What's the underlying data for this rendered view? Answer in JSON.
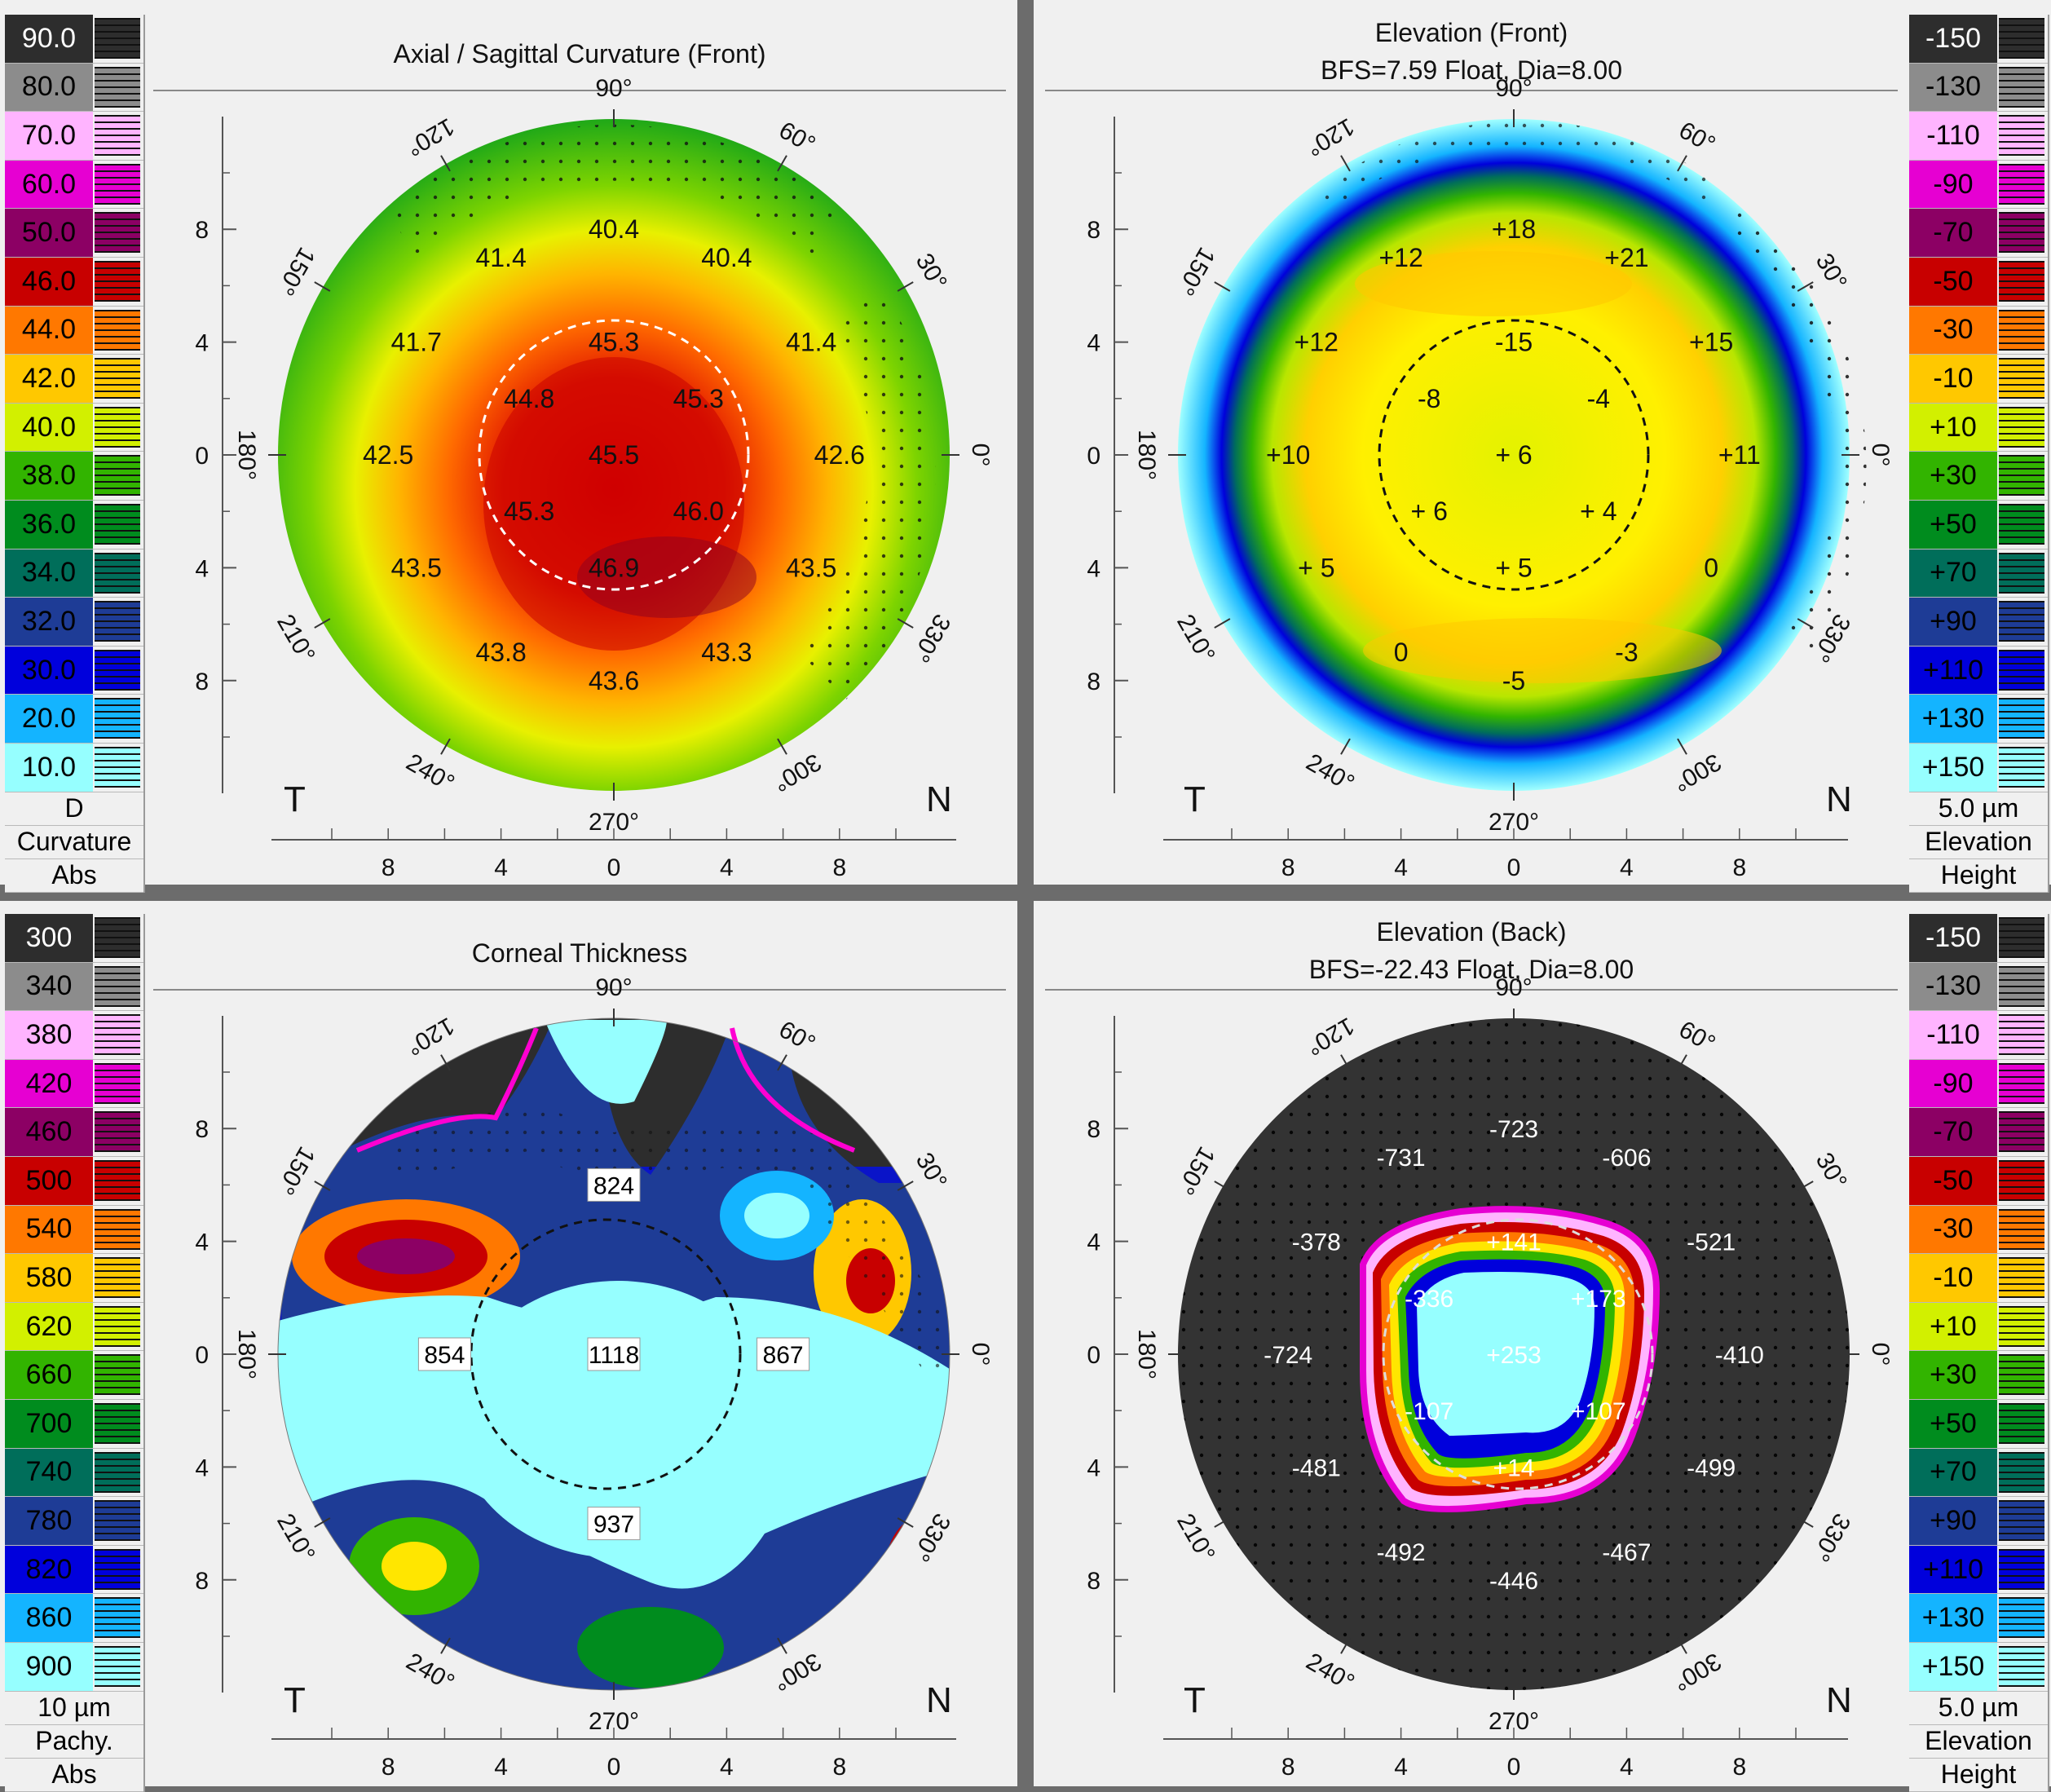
{
  "panels": {
    "axial": {
      "title": "Axial / Sagittal Curvature (Front)",
      "subtitle": "",
      "scale_title": "Curvature",
      "scale_unit": "D",
      "scale_mode": "Abs",
      "scale": [
        "90.0",
        "80.0",
        "70.0",
        "60.0",
        "50.0",
        "46.0",
        "44.0",
        "42.0",
        "40.0",
        "38.0",
        "36.0",
        "34.0",
        "32.0",
        "30.0",
        "20.0",
        "10.0"
      ],
      "values": [
        {
          "t": "40.4"
        },
        {
          "t": "41.4"
        },
        {
          "t": "40.4"
        },
        {
          "t": "41.7"
        },
        {
          "t": "45.3"
        },
        {
          "t": "41.4"
        },
        {
          "t": "44.8"
        },
        {
          "t": "45.3"
        },
        {
          "t": "42.5"
        },
        {
          "t": "45.5"
        },
        {
          "t": "42.6"
        },
        {
          "t": "45.3"
        },
        {
          "t": "46.0"
        },
        {
          "t": "43.5"
        },
        {
          "t": "46.9"
        },
        {
          "t": "43.5"
        },
        {
          "t": "43.8"
        },
        {
          "t": "43.3"
        },
        {
          "t": "43.6"
        }
      ]
    },
    "elev_front": {
      "title": "Elevation (Front)",
      "subtitle": "BFS=7.59 Float, Dia=8.00",
      "scale_title": "Elevation",
      "scale_unit": "5.0 µm",
      "scale_mode": "Height",
      "scale": [
        "-150",
        "-130",
        "-110",
        "-90",
        "-70",
        "-50",
        "-30",
        "-10",
        "+10",
        "+30",
        "+50",
        "+70",
        "+90",
        "+110",
        "+130",
        "+150"
      ],
      "values": [
        {
          "t": "+18"
        },
        {
          "t": "+12"
        },
        {
          "t": "+21"
        },
        {
          "t": "+12"
        },
        {
          "t": "-15"
        },
        {
          "t": "+15"
        },
        {
          "t": "-8"
        },
        {
          "t": "-4"
        },
        {
          "t": "+10"
        },
        {
          "t": "+ 6"
        },
        {
          "t": "+11"
        },
        {
          "t": "+ 6"
        },
        {
          "t": "+ 4"
        },
        {
          "t": "+ 5"
        },
        {
          "t": "+ 5"
        },
        {
          "t": "0"
        },
        {
          "t": "0"
        },
        {
          "t": "-3"
        },
        {
          "t": "-5"
        }
      ]
    },
    "thickness": {
      "title": "Corneal Thickness",
      "subtitle": "",
      "scale_title": "Pachy.",
      "scale_unit": "10 µm",
      "scale_mode": "Abs",
      "scale": [
        "300",
        "340",
        "380",
        "420",
        "460",
        "500",
        "540",
        "580",
        "620",
        "660",
        "700",
        "740",
        "780",
        "820",
        "860",
        "900"
      ],
      "values": [
        {
          "t": "824"
        },
        {
          "t": "854"
        },
        {
          "t": "1118"
        },
        {
          "t": "867"
        },
        {
          "t": "937"
        }
      ]
    },
    "elev_back": {
      "title": "Elevation (Back)",
      "subtitle": "BFS=-22.43 Float, Dia=8.00",
      "scale_title": "Elevation",
      "scale_unit": "5.0 µm",
      "scale_mode": "Height",
      "scale": [
        "-150",
        "-130",
        "-110",
        "-90",
        "-70",
        "-50",
        "-30",
        "-10",
        "+10",
        "+30",
        "+50",
        "+70",
        "+90",
        "+110",
        "+130",
        "+150"
      ],
      "values": [
        {
          "t": "-723"
        },
        {
          "t": "-731"
        },
        {
          "t": "-606"
        },
        {
          "t": "-378"
        },
        {
          "t": "+141"
        },
        {
          "t": "-521"
        },
        {
          "t": "-336"
        },
        {
          "t": "+173"
        },
        {
          "t": "-724"
        },
        {
          "t": "+253"
        },
        {
          "t": "-410"
        },
        {
          "t": "-107"
        },
        {
          "t": "+107"
        },
        {
          "t": "-481"
        },
        {
          "t": "+14"
        },
        {
          "t": "-499"
        },
        {
          "t": "-492"
        },
        {
          "t": "-467"
        },
        {
          "t": "-446"
        }
      ]
    }
  },
  "axis": {
    "angles": [
      "90°",
      "60°",
      "30°",
      "0°",
      "330°",
      "300°",
      "270°",
      "240°",
      "210°",
      "180°",
      "150°",
      "120°"
    ],
    "x_ticks": [
      "8",
      "4",
      "0",
      "4",
      "8"
    ],
    "y_ticks": [
      "8",
      "4",
      "0",
      "4",
      "8"
    ],
    "temporal": "T",
    "nasal": "N"
  },
  "colors": {
    "axial_scale": [
      "#2d2d2d",
      "#8c8c8c",
      "#ffb4ff",
      "#e600d2",
      "#8c0064",
      "#c80000",
      "#ff7800",
      "#ffc800",
      "#d2f000",
      "#32b400",
      "#008c1e",
      "#006e5a",
      "#1e3c96",
      "#0000dc",
      "#14b4ff",
      "#96ffff"
    ],
    "elev_scale": [
      "#2d2d2d",
      "#8c8c8c",
      "#ffb4ff",
      "#e600d2",
      "#8c0064",
      "#c80000",
      "#ff7800",
      "#ffc800",
      "#d2f000",
      "#32b400",
      "#008c1e",
      "#006e5a",
      "#1e3c96",
      "#0000dc",
      "#14b4ff",
      "#96ffff"
    ]
  }
}
